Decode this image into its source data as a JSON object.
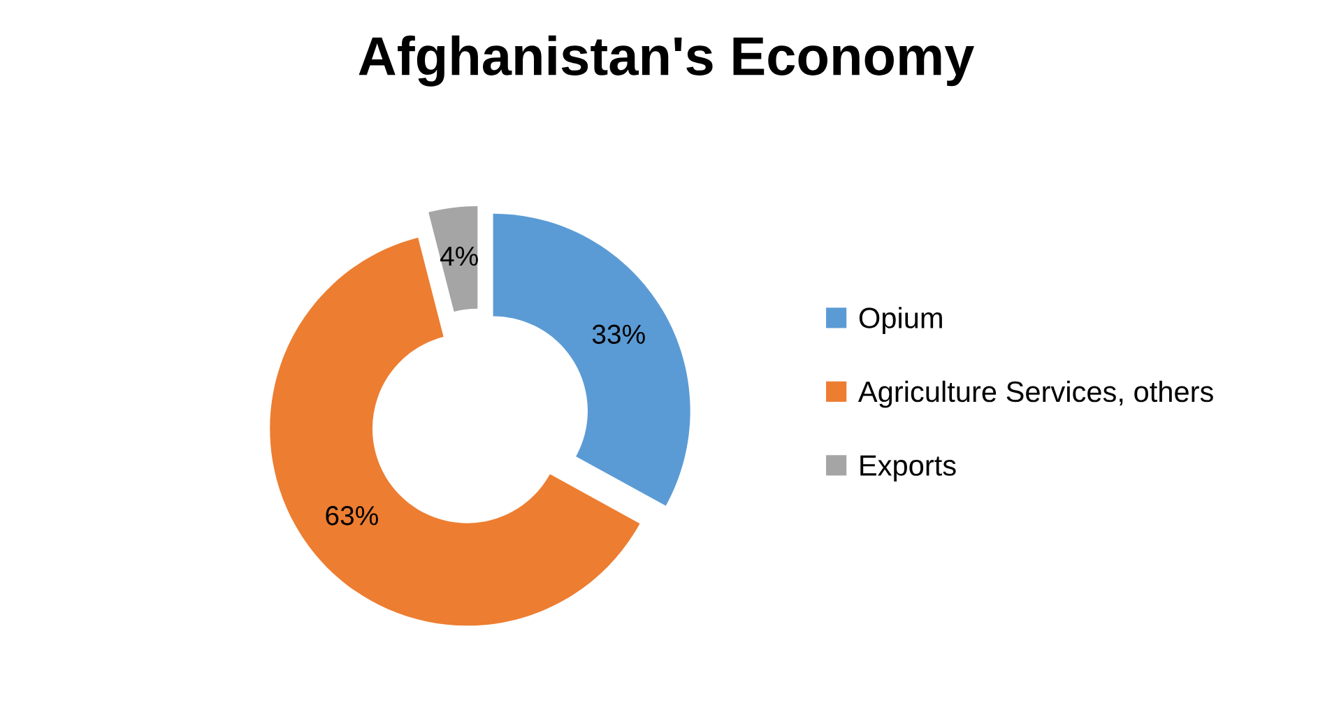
{
  "chart_data": {
    "type": "donut",
    "title": "Afghanistan's Economy",
    "categories": [
      "Opium",
      "Agriculture Services, others",
      "Exports"
    ],
    "values": [
      33,
      63,
      4
    ],
    "colors": [
      "#5b9bd5",
      "#ed7d31",
      "#a5a5a5"
    ],
    "value_labels": [
      "33%",
      "63%",
      "4%"
    ],
    "legend": "right"
  }
}
